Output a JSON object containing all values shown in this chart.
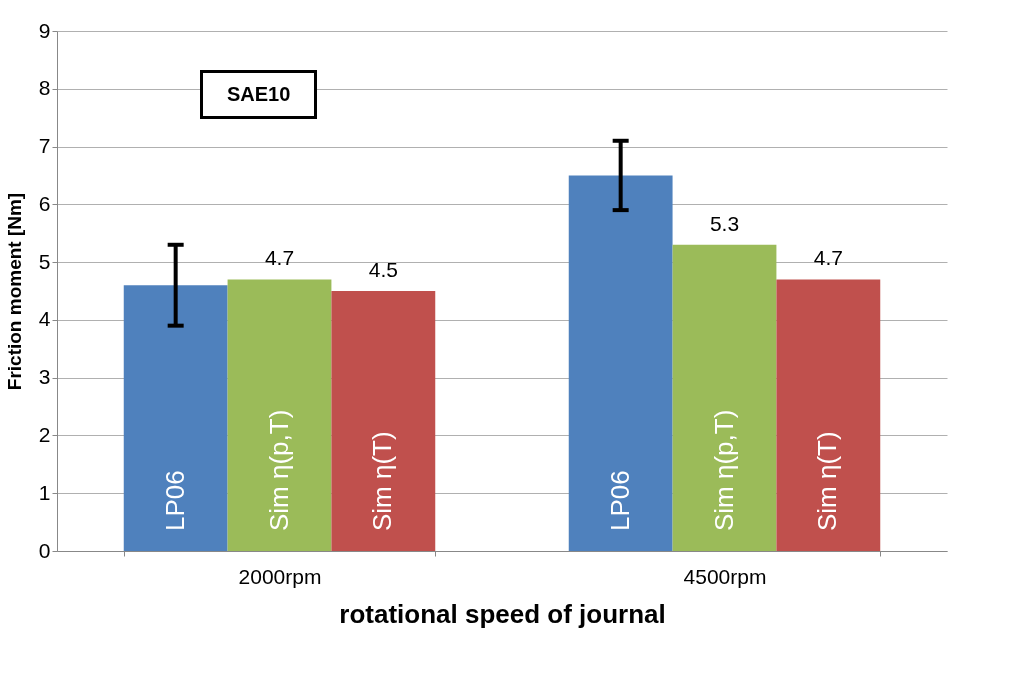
{
  "chart_data": {
    "type": "bar",
    "xlabel": "rotational speed of journal",
    "ylabel": "Friction moment [Nm]",
    "categories": [
      "2000rpm",
      "4500rpm"
    ],
    "series": [
      {
        "name": "LP06",
        "color": "#4f81bd",
        "values": [
          4.6,
          6.5
        ],
        "errors": [
          [
            3.9,
            5.3
          ],
          [
            5.9,
            7.1
          ]
        ]
      },
      {
        "name": "Sim η(p,T)",
        "color": "#9bbb59",
        "values": [
          4.7,
          5.3
        ],
        "value_labels": [
          "4.7",
          "5.3"
        ]
      },
      {
        "name": "Sim η(T)",
        "color": "#c0504d",
        "values": [
          4.5,
          4.7
        ],
        "value_labels": [
          "4.5",
          "4.7"
        ]
      }
    ],
    "ylim": [
      0,
      9
    ],
    "yticks": [
      0,
      1,
      2,
      3,
      4,
      5,
      6,
      7,
      8,
      9
    ],
    "grid": "y",
    "annotations": [
      "SAE10"
    ]
  }
}
